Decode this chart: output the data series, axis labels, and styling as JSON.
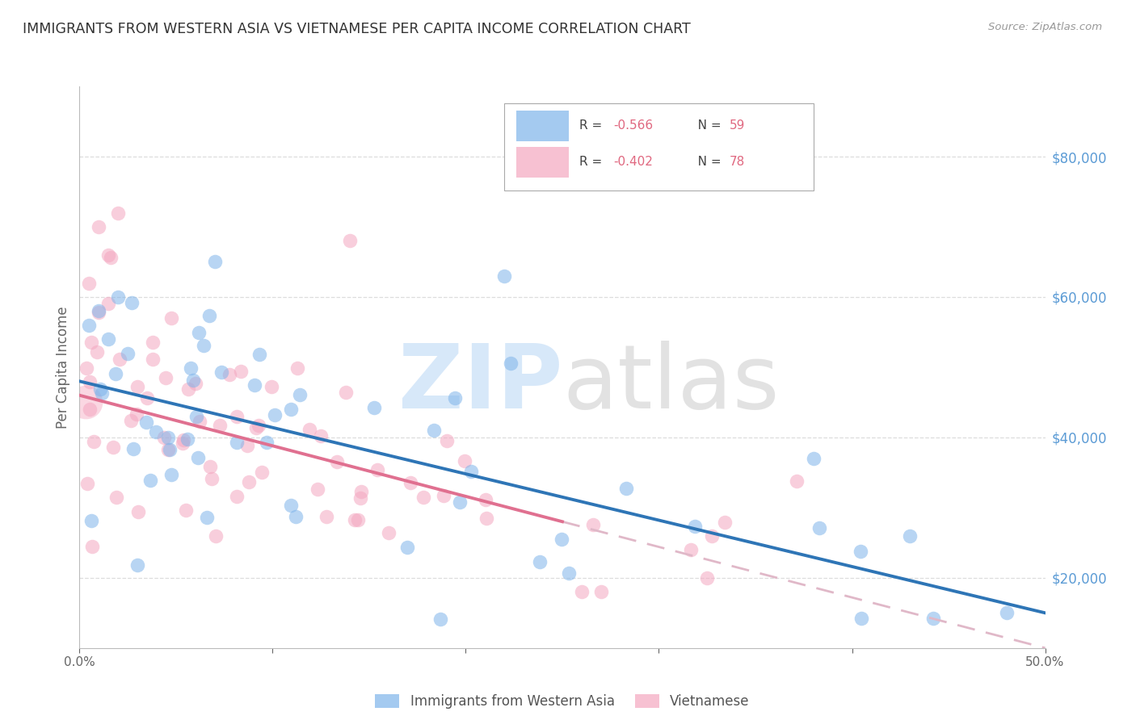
{
  "title": "IMMIGRANTS FROM WESTERN ASIA VS VIETNAMESE PER CAPITA INCOME CORRELATION CHART",
  "source_text": "Source: ZipAtlas.com",
  "ylabel": "Per Capita Income",
  "xlim": [
    0.0,
    0.5
  ],
  "ylim": [
    10000,
    90000
  ],
  "xtick_labels": [
    "0.0%",
    "",
    "",
    "",
    "",
    "50.0%"
  ],
  "xtick_values": [
    0.0,
    0.1,
    0.2,
    0.3,
    0.4,
    0.5
  ],
  "right_ytick_labels": [
    "$20,000",
    "$40,000",
    "$60,000",
    "$80,000"
  ],
  "right_ytick_values": [
    20000,
    40000,
    60000,
    80000
  ],
  "series1_name": "Immigrants from Western Asia",
  "series1_R": "-0.566",
  "series1_N": "59",
  "series1_color": "#7EB4EA",
  "series2_name": "Vietnamese",
  "series2_R": "-0.402",
  "series2_N": "78",
  "series2_color": "#F4A7C0",
  "line1_color": "#2E75B6",
  "line2_color": "#E07090",
  "line2_dash_color": "#E0B8C8",
  "watermark_zip_color": "#BDD9F5",
  "watermark_atlas_color": "#D0D0D0",
  "background_color": "#FFFFFF",
  "grid_color": "#DDDDDD",
  "title_color": "#333333",
  "axis_label_color": "#666666",
  "right_axis_color": "#5B9BD5",
  "legend_R_color": "#E06880",
  "legend_N_color": "#E06880",
  "blue_line_x0": 0.0,
  "blue_line_y0": 48000,
  "blue_line_x1": 0.5,
  "blue_line_y1": 15000,
  "pink_line_solid_x0": 0.0,
  "pink_line_solid_y0": 46000,
  "pink_line_solid_x1": 0.25,
  "pink_line_solid_y1": 28000,
  "pink_line_dash_x0": 0.25,
  "pink_line_dash_y0": 28000,
  "pink_line_dash_x1": 0.5,
  "pink_line_dash_y1": 10000
}
